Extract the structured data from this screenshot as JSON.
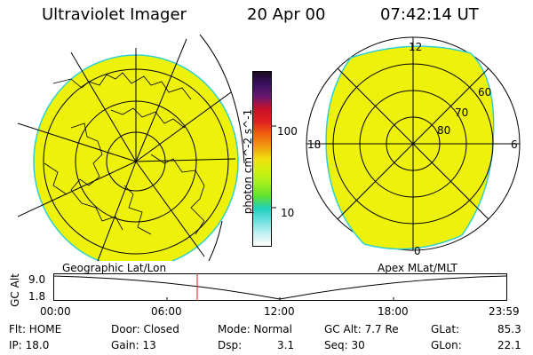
{
  "header": {
    "instrument": "Ultraviolet Imager",
    "date": "20 Apr 00",
    "time": "07:42:14 UT"
  },
  "colorbar": {
    "label": "photon cm^-2 s^-1",
    "ticks": [
      "100",
      "10"
    ],
    "colors": [
      "#1a0a20",
      "#3a1060",
      "#6a1870",
      "#c8102a",
      "#e02020",
      "#f06010",
      "#f09a10",
      "#f0e010",
      "#d0f010",
      "#a0f020",
      "#60e030",
      "#20d0c0",
      "#70e0e0",
      "#c0f0f0",
      "#ffffff"
    ]
  },
  "left_map": {
    "caption": "Geographic Lat/Lon",
    "fill_color": "#eef20a"
  },
  "right_map": {
    "caption": "Apex MLat/MLT",
    "lat_labels": [
      "60",
      "70",
      "80"
    ],
    "mlt_labels": {
      "top": "12",
      "left": "18",
      "right": "6",
      "bottom": "0"
    },
    "fill_color": "#eef20a"
  },
  "altitude_plot": {
    "ylabel": "GC Alt",
    "yticks": [
      "9.0",
      "1.8"
    ],
    "xticks": [
      "00:00",
      "06:00",
      "12:00",
      "18:00",
      "23:59"
    ],
    "marker_color": "#d02020"
  },
  "footer": {
    "row1": {
      "flt": "Flt: HOME",
      "door": "Door: Closed",
      "mode": "Mode: Normal",
      "gcalt": "GC Alt: 7.7 Re",
      "glat": "GLat:",
      "glat_val": "85.3"
    },
    "row2": {
      "ip": "IP: 18.0",
      "gain": "Gain: 13",
      "dsp": "Dsp:",
      "dsp_val": "3.1",
      "seq": "Seq: 30",
      "glon": "GLon:",
      "glon_val": "22.1"
    }
  }
}
